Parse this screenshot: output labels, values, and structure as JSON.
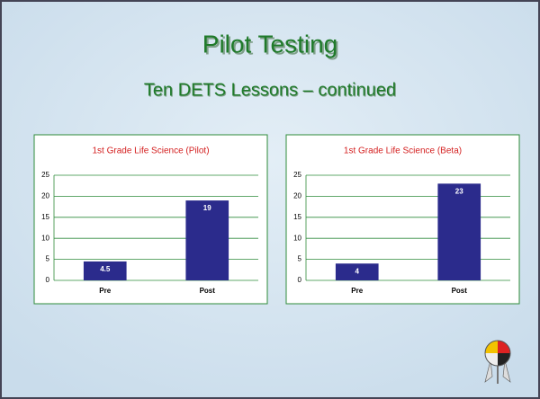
{
  "slide": {
    "title": "Pilot Testing",
    "subtitle": "Ten DETS Lessons – continued"
  },
  "chart_data": [
    {
      "type": "bar",
      "title": "1st Grade Life Science (Pilot)",
      "categories": [
        "Pre",
        "Post"
      ],
      "values": [
        4.5,
        19
      ],
      "color": "#2b2b8c",
      "ylim": [
        0,
        25
      ],
      "yticks": [
        0,
        5,
        10,
        15,
        20,
        25
      ],
      "grid": true
    },
    {
      "type": "bar",
      "title": "1st Grade Life Science (Beta)",
      "categories": [
        "Pre",
        "Post"
      ],
      "values": [
        4,
        23
      ],
      "color": "#2b2b8c",
      "ylim": [
        0,
        25
      ],
      "yticks": [
        0,
        5,
        10,
        15,
        20,
        25
      ],
      "grid": true
    }
  ]
}
